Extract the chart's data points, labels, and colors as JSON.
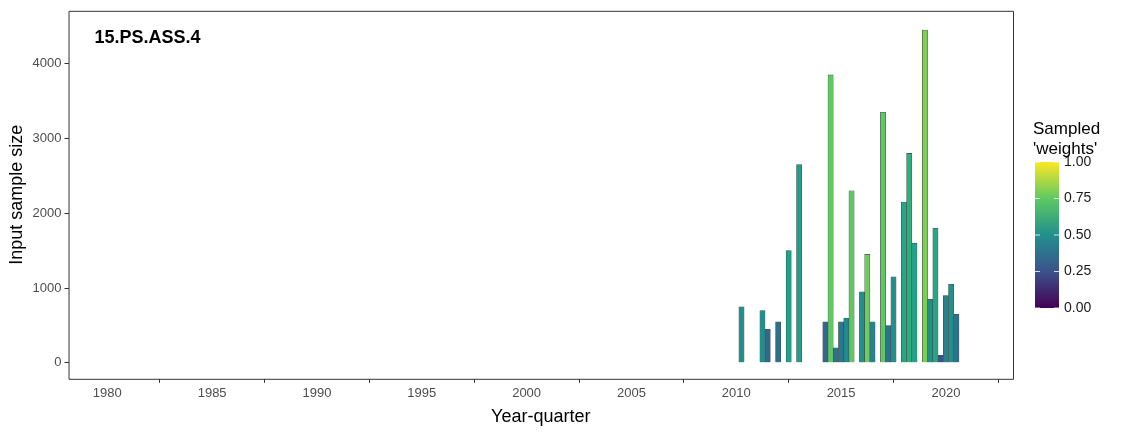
{
  "chart_data": {
    "type": "bar",
    "title": "15.PS.ASS.4",
    "xlabel": "Year-quarter",
    "ylabel": "Input sample size",
    "clabel": "Sampled 'weights'",
    "x": [
      2010.25,
      2011.25,
      2011.5,
      2012.0,
      2012.5,
      2013.0,
      2014.25,
      2014.5,
      2014.75,
      2015.0,
      2015.25,
      2015.5,
      2016.0,
      2016.25,
      2016.5,
      2017.0,
      2017.25,
      2017.5,
      2018.0,
      2018.25,
      2018.5,
      2019.0,
      2019.25,
      2019.5,
      2019.75,
      2020.0,
      2020.25,
      2020.5
    ],
    "values": [
      750,
      700,
      450,
      550,
      1500,
      2650,
      550,
      3850,
      200,
      550,
      600,
      2300,
      950,
      1450,
      550,
      3350,
      500,
      1150,
      2150,
      2800,
      1600,
      4450,
      850,
      1800,
      100,
      900,
      1050,
      650
    ],
    "colors": [
      "#21908d",
      "#21908d",
      "#31688e",
      "#2d708e",
      "#1fa088",
      "#1fa088",
      "#31688e",
      "#5ec962",
      "#2c728e",
      "#2a788e",
      "#23898e",
      "#5ec962",
      "#21908d",
      "#6ccd5a",
      "#26828e",
      "#5ec962",
      "#2c728e",
      "#21908d",
      "#22a884",
      "#2ab07f",
      "#20a386",
      "#7ad151",
      "#21908d",
      "#22a884",
      "#3b528b",
      "#26828e",
      "#21918c",
      "#2c728e"
    ],
    "xlim": [
      1978.15,
      2023.2
    ],
    "xticks": [
      1980,
      1985,
      1990,
      1995,
      2000,
      2005,
      2010,
      2015,
      2020
    ],
    "ylim": [
      -213,
      4707
    ],
    "yticks": [
      0,
      1000,
      2000,
      3000,
      4000
    ],
    "clim": [
      0,
      1
    ],
    "cticks": [
      {
        "value": 0,
        "label": "0.00"
      },
      {
        "value": 0.25,
        "label": "0.25"
      },
      {
        "value": 0.5,
        "label": "0.50"
      },
      {
        "value": 0.75,
        "label": "0.75"
      },
      {
        "value": 1,
        "label": "1.00"
      }
    ],
    "grid": false,
    "legend": false
  }
}
